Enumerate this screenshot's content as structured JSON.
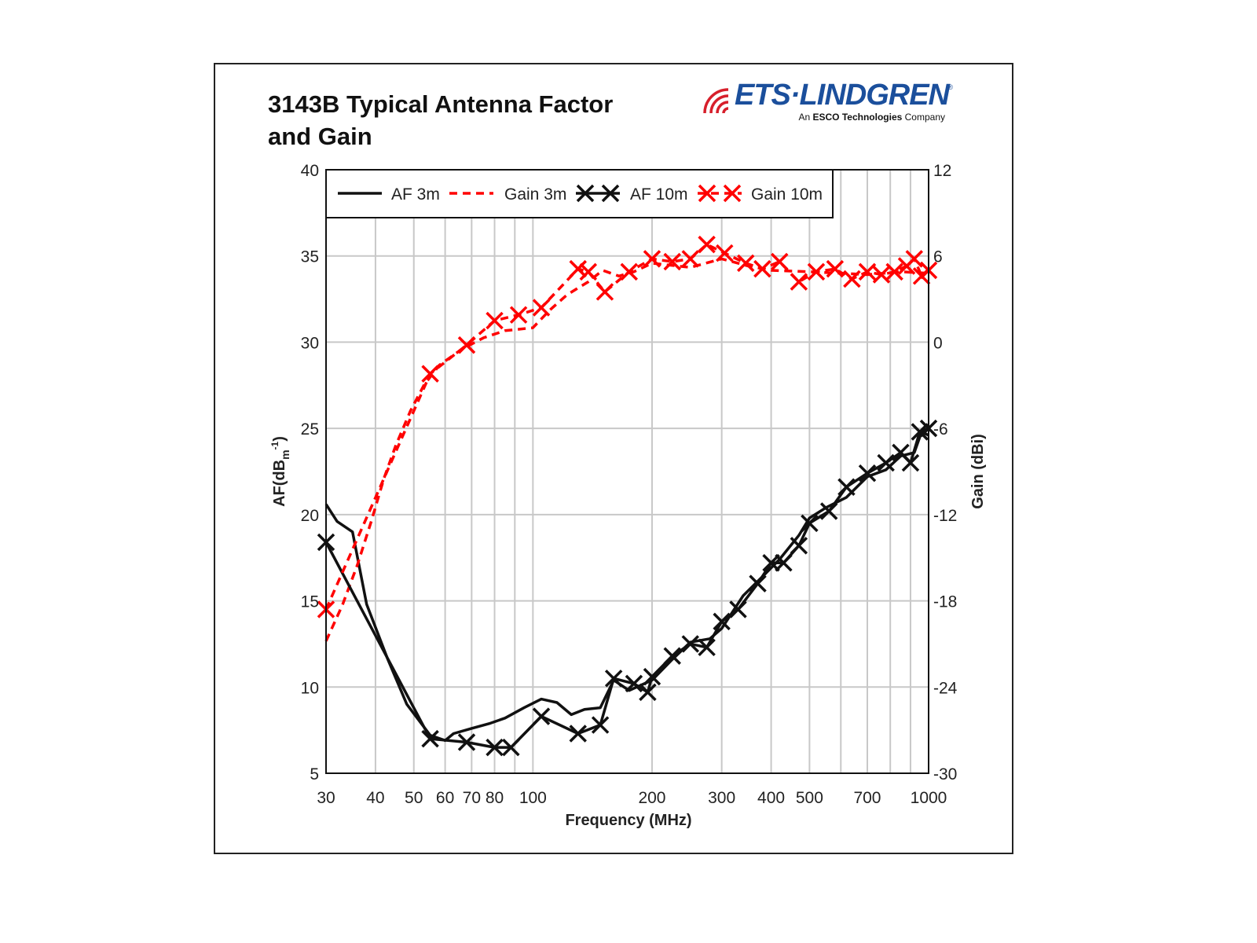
{
  "title": "3143B Typical Antenna Factor\nand Gain",
  "logo": {
    "brand": "ETS·LINDGREN",
    "registered": "®",
    "sub_prefix": "An",
    "sub_bold": "ESCO Technologies",
    "sub_suffix": "Company"
  },
  "chart_data": {
    "type": "line",
    "title": "3143B Typical Antenna Factor and Gain",
    "xlabel": "Frequency (MHz)",
    "ylabel": "AF(dBm-1)",
    "ylabel_parts": {
      "main": "AF(dB",
      "sub": "m",
      "sup": "-1",
      "close": ")"
    },
    "y2label": "Gain (dBi)",
    "xscale": "log",
    "xlim": [
      30,
      1000
    ],
    "ylim": [
      5,
      40
    ],
    "y2lim": [
      -30,
      12
    ],
    "grid": true,
    "legend_position": "top-left",
    "x_ticks": [
      30,
      40,
      50,
      60,
      70,
      80,
      100,
      200,
      300,
      400,
      500,
      700,
      1000
    ],
    "x_tick_labels": [
      "30",
      "40",
      "50",
      "60",
      "70",
      "80",
      "100",
      "200",
      "300",
      "400",
      "500",
      "700",
      "1000"
    ],
    "x_grid": [
      30,
      40,
      50,
      60,
      70,
      80,
      90,
      100,
      200,
      300,
      400,
      500,
      600,
      700,
      800,
      900,
      1000
    ],
    "y_ticks": [
      5,
      10,
      15,
      20,
      25,
      30,
      35,
      40
    ],
    "y_tick_labels": [
      "5",
      "10",
      "15",
      "20",
      "25",
      "30",
      "35",
      "40"
    ],
    "y2_ticks": [
      -30,
      -24,
      -18,
      -12,
      -6,
      0,
      6,
      12
    ],
    "y2_tick_labels": [
      "-30",
      "-24",
      "-18",
      "-12",
      "-6",
      "0",
      "6",
      "12"
    ],
    "series": [
      {
        "name": "AF 3m",
        "axis": "left",
        "style": "solid",
        "color": "#111111",
        "markers": false,
        "points": [
          [
            30,
            20.6
          ],
          [
            32,
            19.6
          ],
          [
            35,
            19.0
          ],
          [
            38,
            14.8
          ],
          [
            43,
            11.6
          ],
          [
            48,
            9.0
          ],
          [
            55,
            7.2
          ],
          [
            60,
            6.9
          ],
          [
            63,
            7.3
          ],
          [
            70,
            7.6
          ],
          [
            78,
            7.9
          ],
          [
            85,
            8.2
          ],
          [
            95,
            8.8
          ],
          [
            105,
            9.3
          ],
          [
            115,
            9.1
          ],
          [
            125,
            8.4
          ],
          [
            135,
            8.7
          ],
          [
            148,
            8.8
          ],
          [
            160,
            10.4
          ],
          [
            175,
            9.8
          ],
          [
            200,
            10.4
          ],
          [
            225,
            11.6
          ],
          [
            250,
            12.6
          ],
          [
            280,
            12.8
          ],
          [
            300,
            13.4
          ],
          [
            340,
            15.3
          ],
          [
            380,
            16.4
          ],
          [
            420,
            17.4
          ],
          [
            470,
            18.8
          ],
          [
            500,
            19.8
          ],
          [
            550,
            20.4
          ],
          [
            620,
            21.0
          ],
          [
            700,
            22.2
          ],
          [
            780,
            22.6
          ],
          [
            850,
            23.4
          ],
          [
            920,
            23.6
          ],
          [
            960,
            24.8
          ],
          [
            1000,
            24.6
          ]
        ]
      },
      {
        "name": "Gain 3m",
        "axis": "right",
        "style": "dashed",
        "color": "#ff0000",
        "markers": false,
        "points": [
          [
            30,
            -20.8
          ],
          [
            33,
            -18.3
          ],
          [
            36,
            -15.5
          ],
          [
            39,
            -12.5
          ],
          [
            42,
            -9.5
          ],
          [
            45,
            -7.2
          ],
          [
            49,
            -4.8
          ],
          [
            53,
            -3.0
          ],
          [
            58,
            -1.6
          ],
          [
            66,
            -0.5
          ],
          [
            75,
            0.3
          ],
          [
            85,
            0.8
          ],
          [
            100,
            1.0
          ],
          [
            110,
            2.2
          ],
          [
            122,
            3.3
          ],
          [
            138,
            4.2
          ],
          [
            150,
            5.0
          ],
          [
            165,
            4.6
          ],
          [
            180,
            4.9
          ],
          [
            200,
            5.5
          ],
          [
            250,
            5.2
          ],
          [
            300,
            5.8
          ],
          [
            350,
            5.3
          ],
          [
            400,
            5.0
          ],
          [
            500,
            4.9
          ],
          [
            600,
            4.8
          ],
          [
            700,
            4.7
          ],
          [
            850,
            4.9
          ],
          [
            1000,
            4.8
          ]
        ]
      },
      {
        "name": "AF 10m",
        "axis": "left",
        "style": "solid",
        "color": "#111111",
        "markers": true,
        "points": [
          [
            30,
            18.4
          ],
          [
            55,
            7.0
          ],
          [
            68,
            6.8
          ],
          [
            80,
            6.5
          ],
          [
            88,
            6.5
          ],
          [
            105,
            8.3
          ],
          [
            130,
            7.3
          ],
          [
            148,
            7.8
          ],
          [
            160,
            10.5
          ],
          [
            180,
            10.2
          ],
          [
            195,
            9.7
          ],
          [
            200,
            10.6
          ],
          [
            225,
            11.8
          ],
          [
            250,
            12.5
          ],
          [
            275,
            12.3
          ],
          [
            300,
            13.8
          ],
          [
            330,
            14.5
          ],
          [
            370,
            16.0
          ],
          [
            400,
            17.2
          ],
          [
            430,
            17.2
          ],
          [
            470,
            18.2
          ],
          [
            500,
            19.5
          ],
          [
            560,
            20.2
          ],
          [
            620,
            21.6
          ],
          [
            700,
            22.4
          ],
          [
            780,
            23.0
          ],
          [
            850,
            23.6
          ],
          [
            900,
            23.0
          ],
          [
            950,
            24.8
          ],
          [
            1000,
            25.0
          ]
        ]
      },
      {
        "name": "Gain 10m",
        "axis": "right",
        "style": "dashed",
        "color": "#ff0000",
        "markers": true,
        "points": [
          [
            30,
            -18.6
          ],
          [
            55,
            -2.2
          ],
          [
            68,
            -0.2
          ],
          [
            80,
            1.5
          ],
          [
            92,
            1.9
          ],
          [
            105,
            2.4
          ],
          [
            130,
            5.1
          ],
          [
            138,
            4.9
          ],
          [
            152,
            3.5
          ],
          [
            175,
            4.9
          ],
          [
            200,
            5.8
          ],
          [
            225,
            5.6
          ],
          [
            250,
            5.8
          ],
          [
            275,
            6.8
          ],
          [
            305,
            6.2
          ],
          [
            345,
            5.5
          ],
          [
            380,
            5.1
          ],
          [
            420,
            5.6
          ],
          [
            470,
            4.2
          ],
          [
            520,
            4.9
          ],
          [
            580,
            5.1
          ],
          [
            640,
            4.4
          ],
          [
            700,
            4.9
          ],
          [
            760,
            4.7
          ],
          [
            820,
            4.9
          ],
          [
            880,
            5.3
          ],
          [
            920,
            5.8
          ],
          [
            960,
            4.6
          ],
          [
            1000,
            5.0
          ]
        ]
      }
    ]
  }
}
